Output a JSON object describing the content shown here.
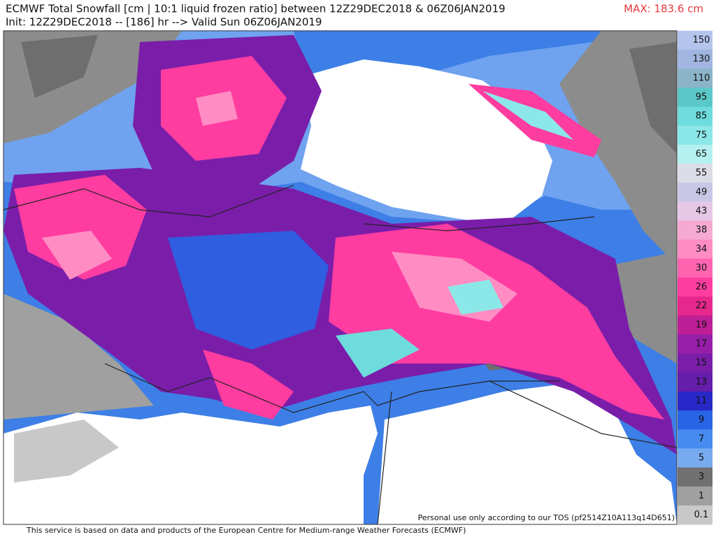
{
  "header": {
    "title": "ECMWF Total Snowfall [cm | 10:1 liquid frozen ratio] between 12Z29DEC2018 & 06Z06JAN2019",
    "subtitle": "Init: 12Z29DEC2018 -- [186] hr --> Valid Sun 06Z06JAN2019",
    "max": "MAX: 183.6 cm"
  },
  "legend": {
    "levels": [
      {
        "label": "150",
        "color": "#b4c4ec"
      },
      {
        "label": "130",
        "color": "#a0b6e0"
      },
      {
        "label": "110",
        "color": "#8cb4c8"
      },
      {
        "label": "95",
        "color": "#5ac8c8"
      },
      {
        "label": "85",
        "color": "#6edcdc"
      },
      {
        "label": "75",
        "color": "#8ce8e8"
      },
      {
        "label": "65",
        "color": "#b4f0f0"
      },
      {
        "label": "55",
        "color": "#dcdce6"
      },
      {
        "label": "49",
        "color": "#c8c8e6"
      },
      {
        "label": "43",
        "color": "#e6c8e6"
      },
      {
        "label": "38",
        "color": "#f5aad2"
      },
      {
        "label": "34",
        "color": "#ff8cc3"
      },
      {
        "label": "30",
        "color": "#ff64b0"
      },
      {
        "label": "26",
        "color": "#ff3ca0"
      },
      {
        "label": "22",
        "color": "#e6288c"
      },
      {
        "label": "19",
        "color": "#be1e96"
      },
      {
        "label": "17",
        "color": "#961ea8"
      },
      {
        "label": "15",
        "color": "#7a1eaa"
      },
      {
        "label": "13",
        "color": "#641eaa"
      },
      {
        "label": "11",
        "color": "#2828c8"
      },
      {
        "label": "9",
        "color": "#2864e6"
      },
      {
        "label": "7",
        "color": "#468cf0"
      },
      {
        "label": "5",
        "color": "#78aaf0"
      },
      {
        "label": "3",
        "color": "#707070"
      },
      {
        "label": "1",
        "color": "#a0a0a0"
      },
      {
        "label": "0.1",
        "color": "#c8c8c8"
      }
    ]
  },
  "watermark": "Personal use only according to our TOS (pf2514Z10A113q14D651)",
  "footer": "This service is based on data and products of the European Centre for Medium-range Weather Forecasts (ECMWF)"
}
